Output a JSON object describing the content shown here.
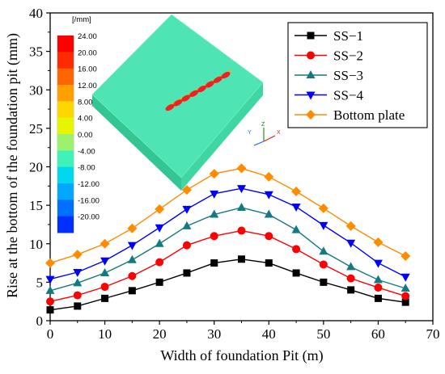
{
  "chart_data": {
    "type": "line",
    "xlabel": "Width of foundation Pit (m)",
    "ylabel": "Rise at the bottom of the foundation pit (mm)",
    "xlim": [
      0,
      70
    ],
    "ylim": [
      0,
      40
    ],
    "xticks": [
      0,
      10,
      20,
      30,
      40,
      50,
      60,
      70
    ],
    "yticks": [
      0,
      5,
      10,
      15,
      20,
      25,
      30,
      35,
      40
    ],
    "grid": false,
    "legend_position": "top-right",
    "x": [
      0,
      5,
      10,
      15,
      20,
      25,
      30,
      35,
      40,
      45,
      50,
      55,
      60,
      65
    ],
    "series": [
      {
        "name": "SS−1",
        "color": "#000000",
        "marker": "square",
        "values": [
          1.4,
          1.9,
          2.9,
          3.9,
          5.0,
          6.2,
          7.5,
          8.0,
          7.5,
          6.2,
          5.0,
          4.0,
          2.9,
          2.4
        ]
      },
      {
        "name": "SS−2",
        "color": "#ff0000",
        "marker": "circle",
        "values": [
          2.5,
          3.3,
          4.4,
          5.8,
          7.6,
          9.8,
          11.0,
          11.7,
          11.0,
          9.3,
          7.3,
          5.5,
          4.3,
          3.2
        ]
      },
      {
        "name": "SS−3",
        "color": "#137a7f",
        "marker": "triangle-up",
        "values": [
          3.9,
          4.9,
          6.2,
          7.9,
          10.0,
          12.3,
          13.8,
          14.7,
          13.8,
          11.8,
          9.0,
          7.0,
          5.3,
          4.2
        ]
      },
      {
        "name": "SS−4",
        "color": "#0000ff",
        "marker": "triangle-down",
        "values": [
          5.4,
          6.3,
          7.8,
          9.8,
          12.1,
          14.5,
          16.5,
          17.2,
          16.4,
          14.8,
          12.4,
          10.1,
          7.5,
          5.7
        ]
      },
      {
        "name": "Bottom plate",
        "color": "#ff8c00",
        "marker": "diamond",
        "values": [
          7.5,
          8.6,
          10.0,
          12.0,
          14.5,
          17.0,
          19.1,
          19.8,
          18.7,
          16.8,
          14.6,
          12.3,
          10.2,
          8.4
        ]
      }
    ]
  },
  "inset": {
    "unit": "[/mm]",
    "colorbar": [
      {
        "label": "24.00",
        "color": "#ff0000"
      },
      {
        "label": "20.00",
        "color": "#ff2a00"
      },
      {
        "label": "16.00",
        "color": "#ff6600"
      },
      {
        "label": "12.00",
        "color": "#ffa000"
      },
      {
        "label": "8.00",
        "color": "#ffd700"
      },
      {
        "label": "4.00",
        "color": "#e6f500"
      },
      {
        "label": "0.00",
        "color": "#9cf26c"
      },
      {
        "label": "-4.00",
        "color": "#3ff2b8"
      },
      {
        "label": "-8.00",
        "color": "#00d8f0"
      },
      {
        "label": "-12.00",
        "color": "#00a8ff"
      },
      {
        "label": "-16.00",
        "color": "#0070ff"
      },
      {
        "label": "-20.00",
        "color": "#0030ff"
      }
    ],
    "triad": {
      "z": "Z",
      "y": "Y",
      "x": "X"
    },
    "colors": {
      "block_top": "#4fe3b2",
      "block_left": "#3ccf9c",
      "block_front": "#36c892",
      "block_edge": "#6ff0c4"
    }
  }
}
